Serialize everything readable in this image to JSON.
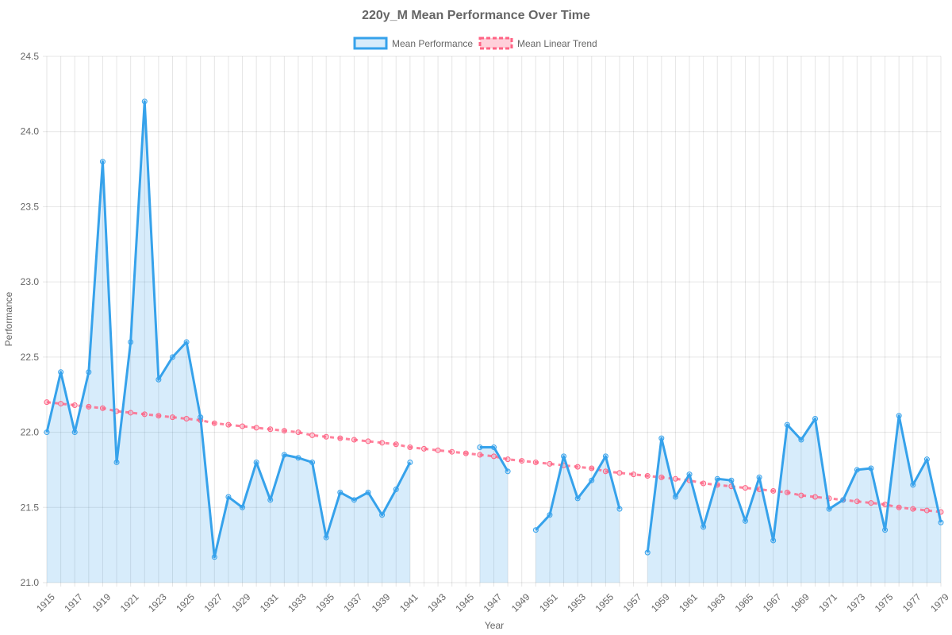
{
  "colors": {
    "mean_line": "#36a2eb",
    "mean_fill": "rgba(54,162,235,0.2)",
    "trend_line": "#ff6384",
    "trend_fill": "rgba(255,99,132,0.3)",
    "text": "#666666",
    "grid": "rgba(0,0,0,0.1)"
  },
  "chart_data": {
    "type": "line",
    "title": "220y_M Mean Performance Over Time",
    "xlabel": "Year",
    "ylabel": "Performance",
    "ylim": [
      21.0,
      24.5
    ],
    "yticks": [
      "21.0",
      "21.5",
      "22.0",
      "22.5",
      "23.0",
      "23.5",
      "24.0",
      "24.5"
    ],
    "grid": true,
    "legend_position": "top",
    "x": [
      1915,
      1916,
      1917,
      1918,
      1919,
      1920,
      1921,
      1922,
      1923,
      1924,
      1925,
      1926,
      1927,
      1928,
      1929,
      1930,
      1931,
      1932,
      1933,
      1934,
      1935,
      1936,
      1937,
      1938,
      1939,
      1940,
      1941,
      1942,
      1943,
      1944,
      1945,
      1946,
      1947,
      1948,
      1949,
      1950,
      1951,
      1952,
      1953,
      1954,
      1955,
      1956,
      1957,
      1958,
      1959,
      1960,
      1961,
      1962,
      1963,
      1964,
      1965,
      1966,
      1967,
      1968,
      1969,
      1970,
      1971,
      1972,
      1973,
      1974,
      1975,
      1976,
      1977,
      1978,
      1979
    ],
    "xtick_labels": [
      "1915",
      "1917",
      "1919",
      "1921",
      "1923",
      "1925",
      "1927",
      "1929",
      "1931",
      "1933",
      "1935",
      "1937",
      "1939",
      "1941",
      "1943",
      "1945",
      "1947",
      "1949",
      "1951",
      "1953",
      "1955",
      "1957",
      "1959",
      "1961",
      "1963",
      "1965",
      "1967",
      "1969",
      "1971",
      "1973",
      "1975",
      "1977",
      "1979"
    ],
    "series": [
      {
        "name": "Mean Performance",
        "values": [
          22.0,
          22.4,
          22.0,
          22.4,
          23.8,
          21.8,
          22.6,
          24.2,
          22.35,
          22.5,
          22.6,
          22.1,
          21.17,
          21.57,
          21.5,
          21.8,
          21.55,
          21.85,
          21.83,
          21.8,
          21.3,
          21.6,
          21.55,
          21.6,
          21.45,
          21.62,
          21.8,
          null,
          null,
          null,
          null,
          21.9,
          21.9,
          21.74,
          null,
          21.35,
          21.45,
          21.84,
          21.56,
          21.68,
          21.84,
          21.49,
          null,
          21.2,
          21.96,
          21.57,
          21.72,
          21.37,
          21.69,
          21.68,
          21.41,
          21.7,
          21.28,
          22.05,
          21.95,
          22.09,
          21.49,
          21.55,
          21.75,
          21.76,
          21.35,
          22.11,
          21.65,
          21.82,
          21.4
        ]
      },
      {
        "name": "Mean Linear Trend",
        "values": [
          22.2,
          22.19,
          22.18,
          22.17,
          22.16,
          22.14,
          22.13,
          22.12,
          22.11,
          22.1,
          22.09,
          22.08,
          22.06,
          22.05,
          22.04,
          22.03,
          22.02,
          22.01,
          22.0,
          21.98,
          21.97,
          21.96,
          21.95,
          21.94,
          21.93,
          21.92,
          21.9,
          21.89,
          21.88,
          21.87,
          21.86,
          21.85,
          21.84,
          21.82,
          21.81,
          21.8,
          21.79,
          21.78,
          21.77,
          21.76,
          21.74,
          21.73,
          21.72,
          21.71,
          21.7,
          21.69,
          21.68,
          21.66,
          21.65,
          21.64,
          21.63,
          21.62,
          21.61,
          21.6,
          21.58,
          21.57,
          21.56,
          21.55,
          21.54,
          21.53,
          21.52,
          21.5,
          21.49,
          21.48,
          21.47
        ]
      }
    ]
  }
}
